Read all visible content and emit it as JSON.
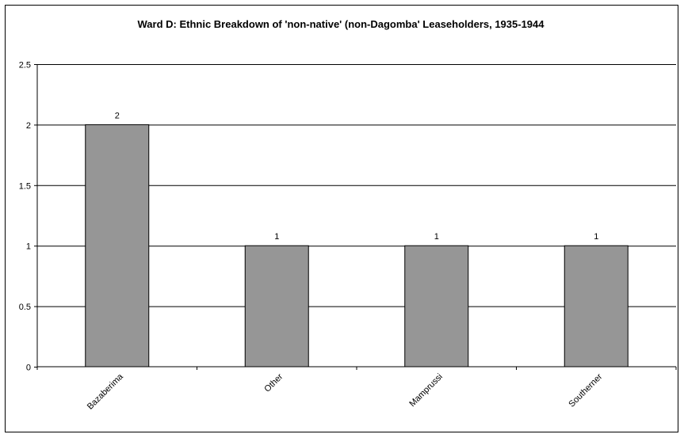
{
  "chart_data": {
    "type": "bar",
    "title": "Ward D: Ethnic Breakdown of 'non-native' (non-Dagomba' Leaseholders, 1935-1944",
    "xlabel": "",
    "ylabel": "",
    "categories": [
      "Bazaberima",
      "Other",
      "Mamprussi",
      "Southerner"
    ],
    "values": [
      2,
      1,
      1,
      1
    ],
    "data_labels": [
      "2",
      "1",
      "1",
      "1"
    ],
    "y_ticks": [
      "0",
      "0.5",
      "1",
      "1.5",
      "2",
      "2.5"
    ],
    "ylim": [
      0,
      2.5
    ],
    "grid": true,
    "legend": "none",
    "bar_color": "#969696",
    "bar_border_color": "#000000"
  }
}
